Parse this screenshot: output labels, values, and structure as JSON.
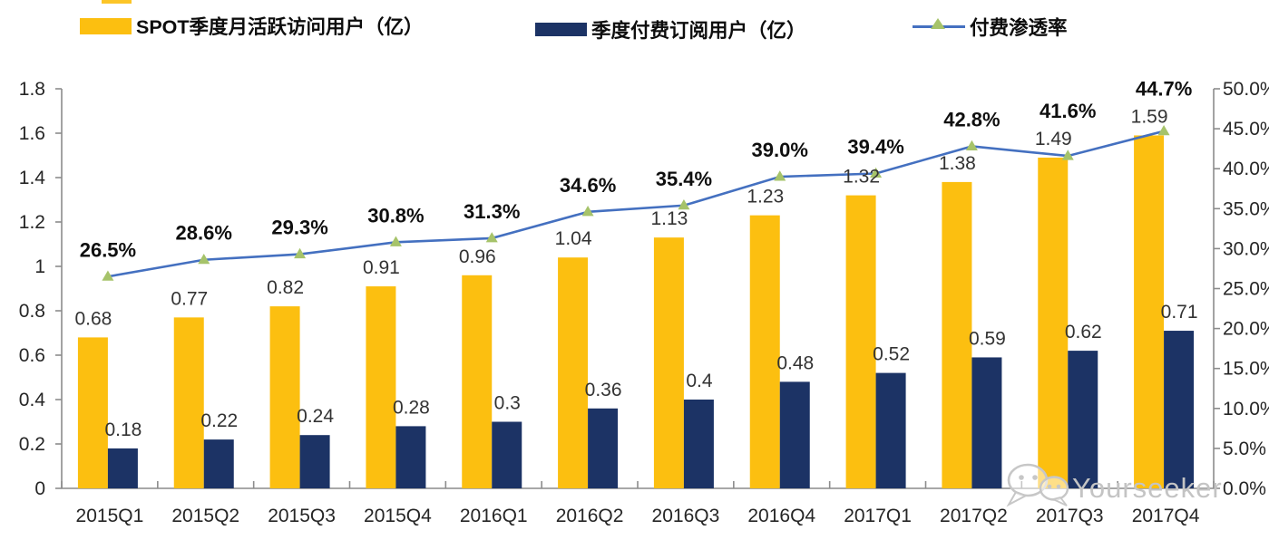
{
  "legend": {
    "mau": {
      "label": "SPOT季度月活跃访问用户（亿）",
      "swatch_color": "#FCBF10"
    },
    "paid": {
      "label": "季度付费订阅用户（亿）",
      "swatch_color": "#1C3365"
    },
    "penetration": {
      "label": "付费渗透率",
      "line_color": "#4470C0",
      "marker_color": "#A6C36A"
    }
  },
  "watermark": {
    "icon": "wechat-bubbles-icon",
    "text": "Yourseeker"
  },
  "chart_data": {
    "type": "bar+line",
    "title": "",
    "legend_position": "top",
    "grid": false,
    "categories": [
      "2015Q1",
      "2015Q2",
      "2015Q3",
      "2015Q4",
      "2016Q1",
      "2016Q2",
      "2016Q3",
      "2016Q4",
      "2017Q1",
      "2017Q2",
      "2017Q3",
      "2017Q4"
    ],
    "series": [
      {
        "name": "SPOT季度月活跃访问用户（亿）",
        "type": "bar",
        "axis": "left",
        "color": "#FCBF10",
        "values": [
          0.68,
          0.77,
          0.82,
          0.91,
          0.96,
          1.04,
          1.13,
          1.23,
          1.32,
          1.38,
          1.49,
          1.59
        ],
        "labels": [
          "0.68",
          "0.77",
          "0.82",
          "0.91",
          "0.96",
          "1.04",
          "1.13",
          "1.23",
          "1.32",
          "1.38",
          "1.49",
          "1.59"
        ]
      },
      {
        "name": "季度付费订阅用户（亿）",
        "type": "bar",
        "axis": "left",
        "color": "#1C3365",
        "values": [
          0.18,
          0.22,
          0.24,
          0.28,
          0.3,
          0.36,
          0.4,
          0.48,
          0.52,
          0.59,
          0.62,
          0.71
        ],
        "labels": [
          "0.18",
          "0.22",
          "0.24",
          "0.28",
          "0.3",
          "0.36",
          "0.4",
          "0.48",
          "0.52",
          "0.59",
          "0.62",
          "0.71"
        ]
      },
      {
        "name": "付费渗透率",
        "type": "line",
        "axis": "right",
        "color": "#4470C0",
        "marker": "triangle-up",
        "marker_color": "#A6C36A",
        "values": [
          26.5,
          28.6,
          29.3,
          30.8,
          31.3,
          34.6,
          35.4,
          39.0,
          39.4,
          42.8,
          41.6,
          44.7
        ],
        "labels": [
          "26.5%",
          "28.6%",
          "29.3%",
          "30.8%",
          "31.3%",
          "34.6%",
          "35.4%",
          "39.0%",
          "39.4%",
          "42.8%",
          "41.6%",
          "44.7%"
        ]
      }
    ],
    "left_axis": {
      "min": 0,
      "max": 1.8,
      "step": 0.2,
      "tick_labels": [
        "0",
        "0.2",
        "0.4",
        "0.6",
        "0.8",
        "1",
        "1.2",
        "1.4",
        "1.6",
        "1.8"
      ]
    },
    "right_axis": {
      "min": 0,
      "max": 50,
      "step": 5,
      "tick_labels": [
        "0.0%",
        "5.0%",
        "10.0%",
        "15.0%",
        "20.0%",
        "25.0%",
        "30.0%",
        "35.0%",
        "40.0%",
        "45.0%",
        "50.0%"
      ]
    }
  }
}
